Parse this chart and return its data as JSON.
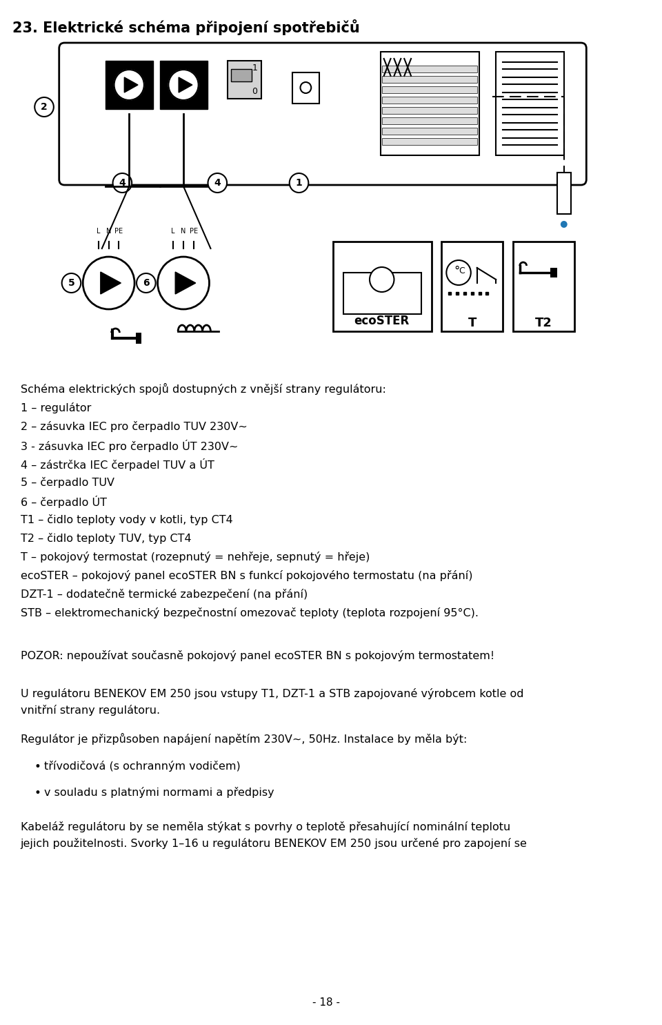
{
  "title": "23. Elektrické schéma připojení spotřebičů",
  "bg_color": "#ffffff",
  "text_color": "#000000",
  "font_size_title": 15,
  "font_size_body": 11.5,
  "page_number": "- 18 -",
  "lines": [
    "Schéma elektrických spojů dostupných z vnější strany regulátoru:",
    "1 – regulátor",
    "2 – zásuvka IEC pro čerpadlo TUV 230V~",
    "3 - zásuvka IEC pro čerpadlo ÚT 230V~",
    "4 – zástrčka IEC čerpadel TUV a ÚT",
    "5 – čerpadlo TUV",
    "6 – čerpadlo ÚT",
    "T1 – čidlo teploty vody v kotli, typ CT4",
    "T2 – čidlo teploty TUV, typ CT4",
    "T – pokojový termostat (rozepnutý = nehřeje, sepnutý = hřeje)",
    "ecoSTER – pokojový panel ecoSTER BN s funkcí pokojového termostatu (na přání)",
    "DZT-1 – dodatečně termické zabezpečení (na přání)",
    "STB – elektromechanický bezpečnostní omezovač teploty (teplota rozpojení 95°C)."
  ],
  "pozor_line": "POZOR: nepoužívat současně pokojový panel ecoSTER BN s pokojovým termostatem!",
  "para1": "U regulátoru BENEKOV EM 250 jsou vstupy T1, DZT-1 a STB zapojované výrobcem kotle od\nvnitřní strany regulátoru.",
  "para2": "Regulátor je přizpůsoben napájení napětím 230V~, 50Hz. Instalace by měla být:",
  "bullet1": "třívodičová (s ochranným vodičem)",
  "bullet2": "v souladu s platnými normami a předpisy",
  "para3": "Kabeláž regulátoru by se neměla stýkat s povrhy o teplotě přesahující nominální teplotu\njejich použitelnosti. Svorky 1–16 u regulátoru BENEKOV EM 250 jsou určené pro zapojení se"
}
